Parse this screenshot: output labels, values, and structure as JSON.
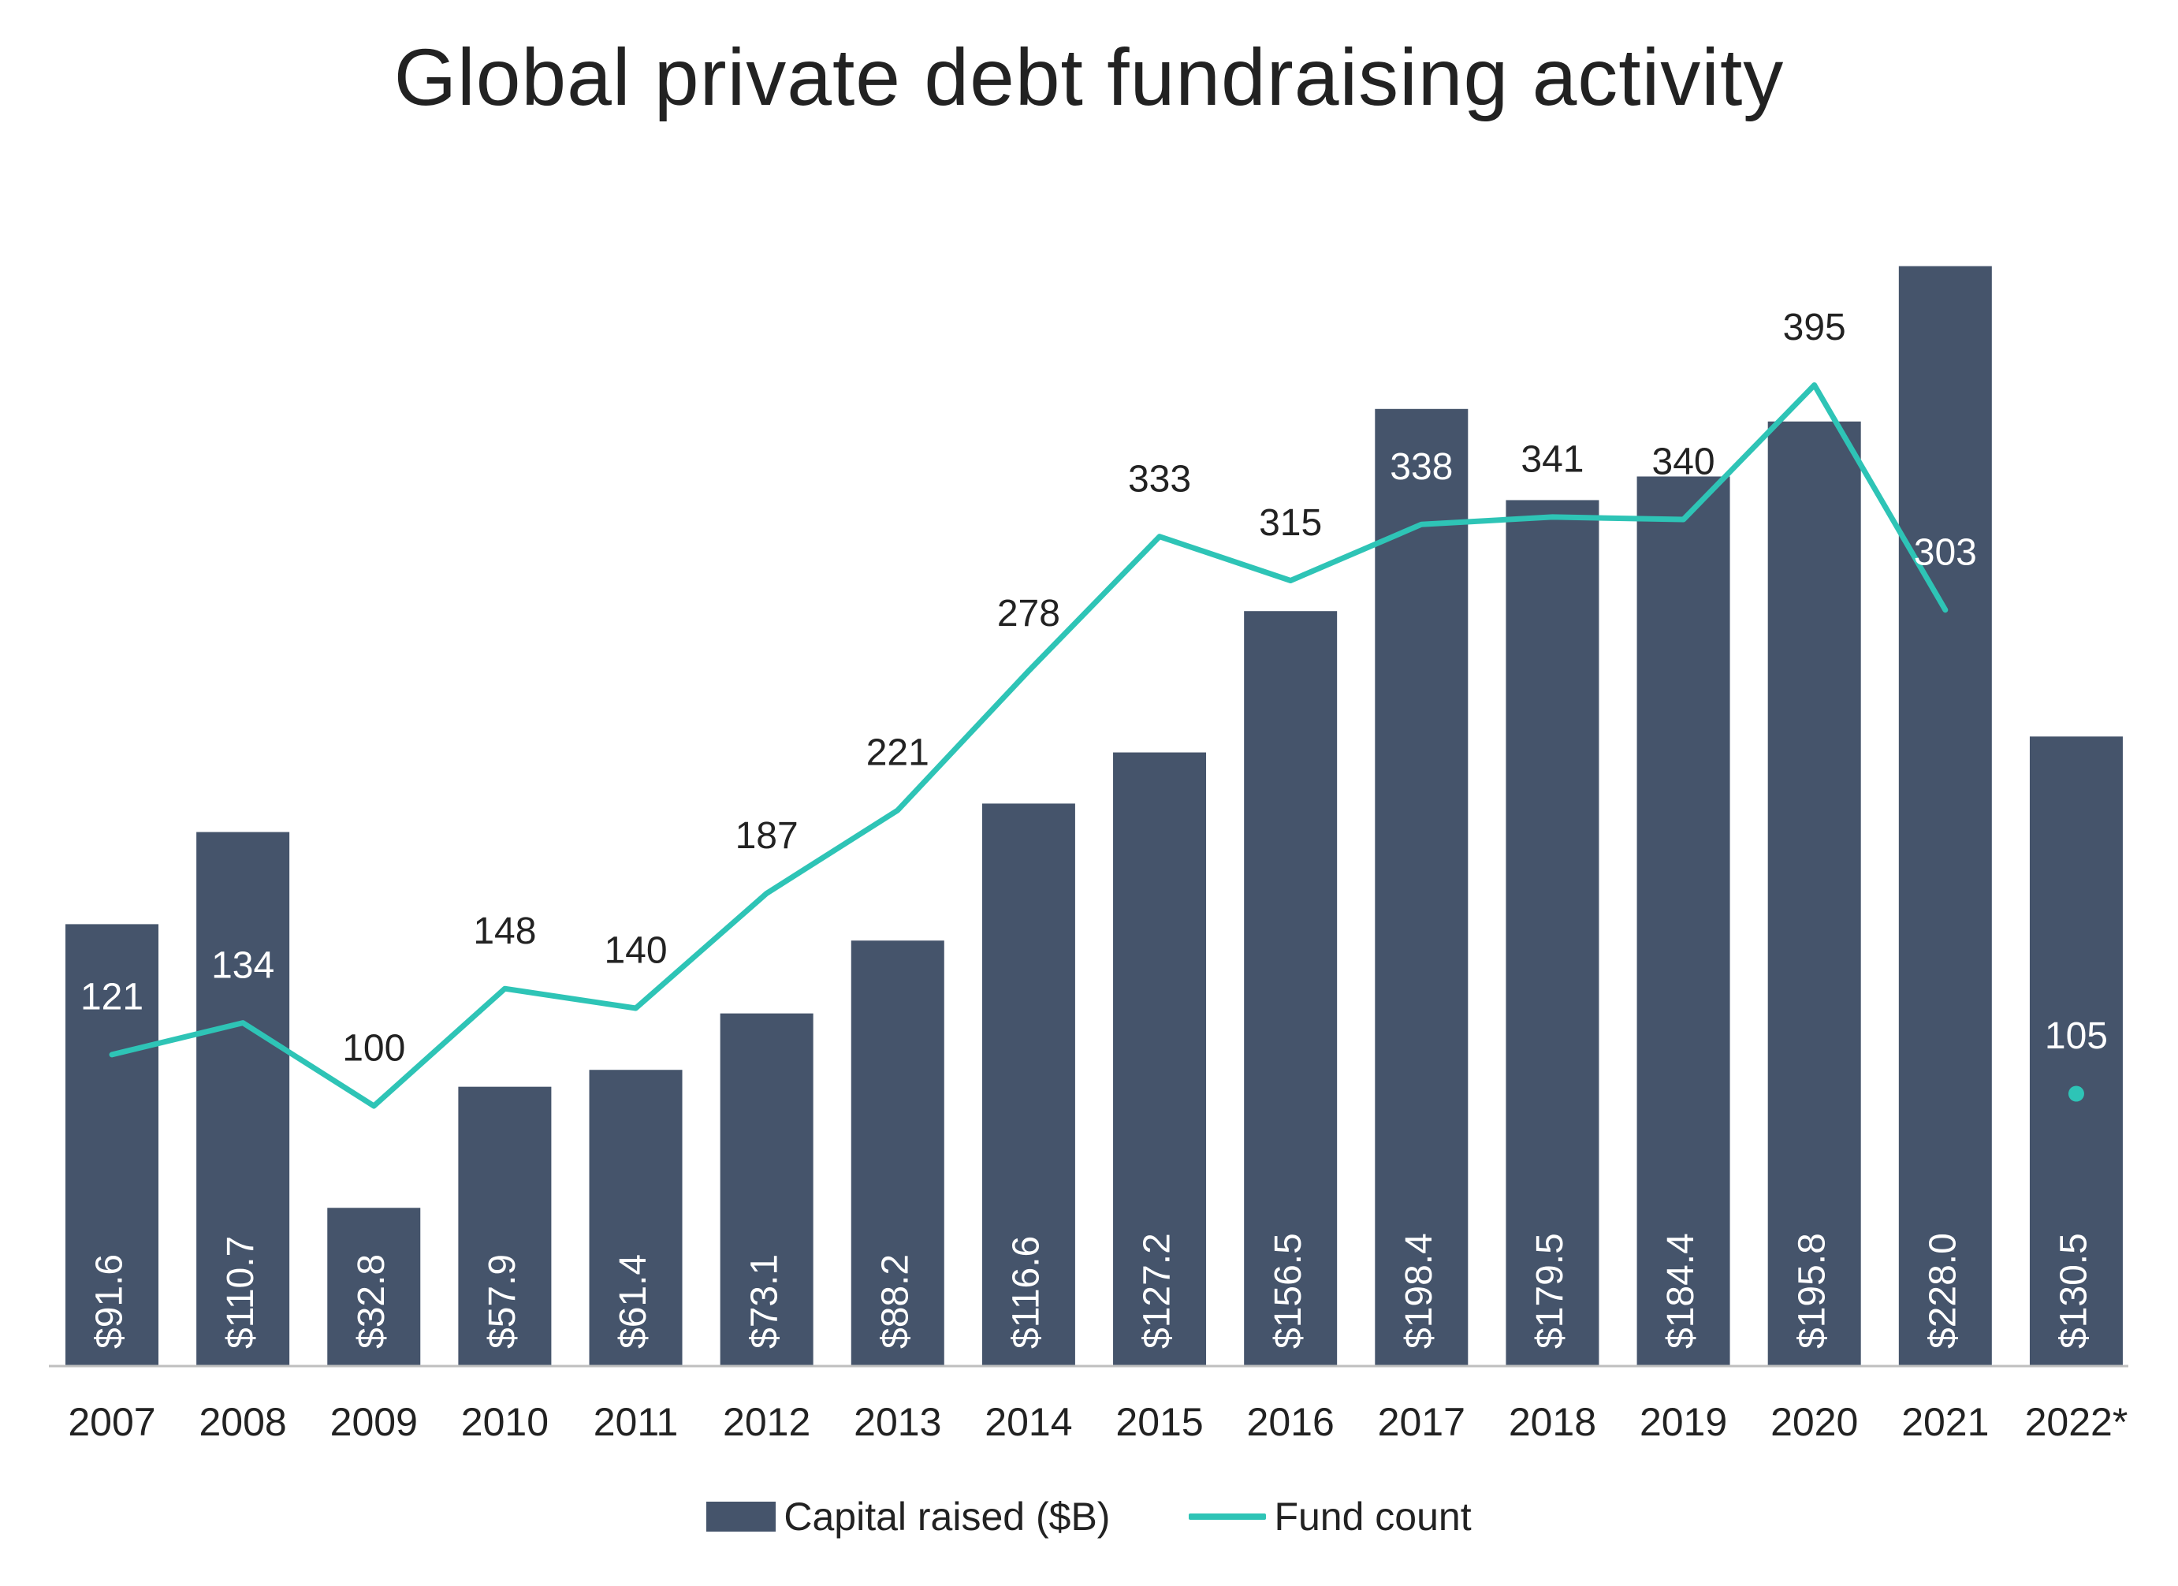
{
  "chart_data": {
    "type": "bar",
    "title": "Global private debt fundraising activity",
    "categories": [
      "2007",
      "2008",
      "2009",
      "2010",
      "2011",
      "2012",
      "2013",
      "2014",
      "2015",
      "2016",
      "2017",
      "2018",
      "2019",
      "2020",
      "2021",
      "2022*"
    ],
    "series": [
      {
        "name": "Capital raised ($B)",
        "type": "bar",
        "values": [
          91.6,
          110.7,
          32.8,
          57.9,
          61.4,
          73.1,
          88.2,
          116.6,
          127.2,
          156.5,
          198.4,
          179.5,
          184.4,
          195.8,
          228.0,
          130.5
        ],
        "labels": [
          "$91.6",
          "$110.7",
          "$32.8",
          "$57.9",
          "$61.4",
          "$73.1",
          "$88.2",
          "$116.6",
          "$127.2",
          "$156.5",
          "$198.4",
          "$179.5",
          "$184.4",
          "$195.8",
          "$228.0",
          "$130.5"
        ],
        "color": "#45546B"
      },
      {
        "name": "Fund count",
        "type": "line",
        "values": [
          121,
          134,
          100,
          148,
          140,
          187,
          221,
          278,
          333,
          315,
          338,
          341,
          340,
          395,
          303,
          105
        ],
        "labels": [
          "121",
          "134",
          "100",
          "148",
          "140",
          "187",
          "221",
          "278",
          "333",
          "315",
          "338",
          "341",
          "340",
          "395",
          "303",
          "105"
        ],
        "separate_last_point": true,
        "color": "#2EC4B6"
      }
    ],
    "xlabel": "",
    "ylabel": "",
    "legend_position": "bottom",
    "grid": false,
    "text_color": "#222222",
    "label_on_bar_color": "#ffffff"
  }
}
